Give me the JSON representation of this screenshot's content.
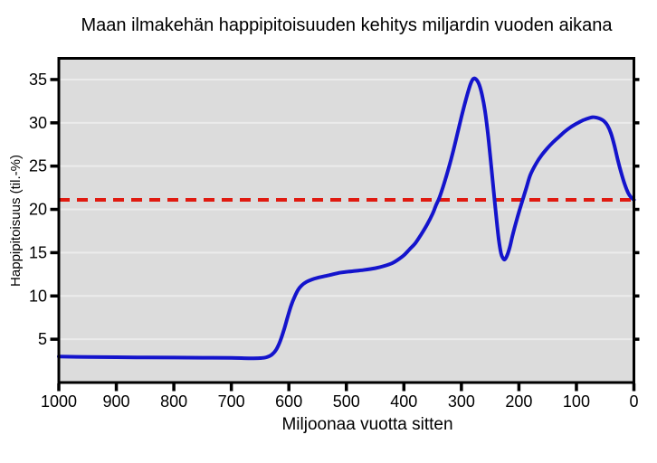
{
  "figure": {
    "title": "Maan ilmakehän happipitoisuuden kehitys miljardin vuoden aikana"
  },
  "chart_data": {
    "type": "line",
    "title": "Maan ilmakehän happipitoisuuden kehitys miljardin vuoden aikana",
    "xlabel": "Miljoonaa vuotta sitten",
    "ylabel": "Happipitoisuus (til.-%)",
    "xlim": [
      1000,
      0
    ],
    "ylim": [
      0,
      37.45
    ],
    "x_axis_reversed": true,
    "xticks": [
      1000,
      900,
      800,
      700,
      600,
      500,
      400,
      300,
      200,
      100,
      0
    ],
    "yticks": [
      5,
      10,
      15,
      20,
      25,
      30,
      35
    ],
    "grid": true,
    "grid_orientation": "horizontal",
    "legend": null,
    "colors": {
      "plot_background": "#dcdcdc",
      "grid_line": "#ebebeb",
      "frame": "#000000",
      "curve": "#1414cc",
      "reference_line": "#e01a10"
    },
    "series": [
      {
        "name": "happipitoisuus-kayra",
        "type": "line",
        "color": "#1414cc",
        "width": 4,
        "points": [
          [
            1000,
            3.0
          ],
          [
            950,
            2.95
          ],
          [
            900,
            2.92
          ],
          [
            850,
            2.9
          ],
          [
            800,
            2.88
          ],
          [
            750,
            2.86
          ],
          [
            700,
            2.84
          ],
          [
            670,
            2.8
          ],
          [
            650,
            2.82
          ],
          [
            640,
            2.9
          ],
          [
            630,
            3.2
          ],
          [
            622,
            3.8
          ],
          [
            615,
            4.8
          ],
          [
            608,
            6.2
          ],
          [
            602,
            7.6
          ],
          [
            596,
            8.9
          ],
          [
            590,
            9.9
          ],
          [
            584,
            10.7
          ],
          [
            578,
            11.2
          ],
          [
            570,
            11.6
          ],
          [
            560,
            11.9
          ],
          [
            550,
            12.1
          ],
          [
            530,
            12.4
          ],
          [
            510,
            12.7
          ],
          [
            490,
            12.85
          ],
          [
            470,
            13.0
          ],
          [
            450,
            13.2
          ],
          [
            435,
            13.45
          ],
          [
            420,
            13.8
          ],
          [
            410,
            14.2
          ],
          [
            400,
            14.7
          ],
          [
            390,
            15.4
          ],
          [
            380,
            16.1
          ],
          [
            370,
            17.1
          ],
          [
            360,
            18.2
          ],
          [
            350,
            19.5
          ],
          [
            344,
            20.5
          ],
          [
            338,
            21.4
          ],
          [
            330,
            23.0
          ],
          [
            322,
            24.8
          ],
          [
            314,
            26.8
          ],
          [
            306,
            29.0
          ],
          [
            298,
            31.2
          ],
          [
            290,
            33.2
          ],
          [
            284,
            34.5
          ],
          [
            279,
            35.1
          ],
          [
            274,
            35.0
          ],
          [
            269,
            34.4
          ],
          [
            264,
            33.2
          ],
          [
            259,
            31.4
          ],
          [
            254,
            28.8
          ],
          [
            249,
            25.6
          ],
          [
            244,
            22.2
          ],
          [
            239,
            18.9
          ],
          [
            235,
            16.5
          ],
          [
            231,
            14.9
          ],
          [
            228,
            14.4
          ],
          [
            225,
            14.2
          ],
          [
            221,
            14.6
          ],
          [
            216,
            15.6
          ],
          [
            211,
            17.0
          ],
          [
            205,
            18.5
          ],
          [
            199,
            19.9
          ],
          [
            193,
            21.2
          ],
          [
            187,
            22.5
          ],
          [
            180,
            24.0
          ],
          [
            170,
            25.3
          ],
          [
            160,
            26.3
          ],
          [
            150,
            27.1
          ],
          [
            140,
            27.8
          ],
          [
            130,
            28.4
          ],
          [
            120,
            29.0
          ],
          [
            110,
            29.5
          ],
          [
            100,
            29.9
          ],
          [
            90,
            30.25
          ],
          [
            80,
            30.5
          ],
          [
            72,
            30.65
          ],
          [
            65,
            30.6
          ],
          [
            58,
            30.45
          ],
          [
            52,
            30.2
          ],
          [
            46,
            29.7
          ],
          [
            40,
            28.8
          ],
          [
            34,
            27.4
          ],
          [
            28,
            25.7
          ],
          [
            22,
            24.2
          ],
          [
            16,
            22.9
          ],
          [
            10,
            21.9
          ],
          [
            5,
            21.4
          ],
          [
            0,
            21.1
          ]
        ]
      },
      {
        "name": "nykyinen-happipitoisuus-viiteviiva",
        "type": "dashed-hline",
        "color": "#e01a10",
        "width": 4,
        "dash": [
          12,
          8
        ],
        "value": 21.1
      }
    ]
  }
}
